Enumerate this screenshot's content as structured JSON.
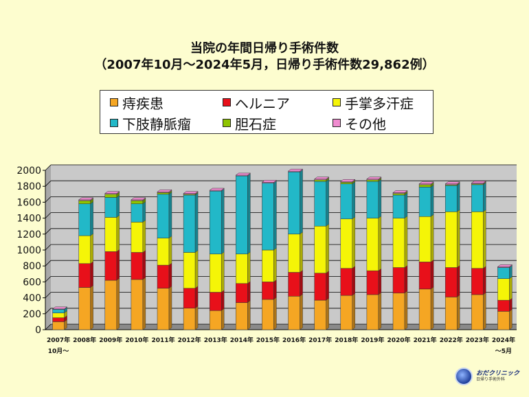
{
  "title_line1": "当院の年間日帰り手術件数",
  "title_line2": "（2007年10月～2024年5月，日帰り手術件数29,862例）",
  "logo": {
    "name": "おだクリニック",
    "subtitle": "日帰り手術外科"
  },
  "colors": {
    "background": "#fdfdcf",
    "plot_wall": "#c9c9c9",
    "floor": "#8a8a8a"
  },
  "chart_data": {
    "type": "bar",
    "stacked": true,
    "ylim": [
      0,
      2000
    ],
    "yticks": [
      "0",
      "200",
      "400",
      "600",
      "800",
      "1000",
      "1200",
      "1400",
      "1600",
      "1800",
      "2000"
    ],
    "grid": true,
    "legend_position": "top",
    "categories": [
      {
        "line1": "2007年",
        "line2": "10月～"
      },
      {
        "line1": "2008年",
        "line2": ""
      },
      {
        "line1": "2009年",
        "line2": ""
      },
      {
        "line1": "2010年",
        "line2": ""
      },
      {
        "line1": "2011年",
        "line2": ""
      },
      {
        "line1": "2012年",
        "line2": ""
      },
      {
        "line1": "2013年",
        "line2": ""
      },
      {
        "line1": "2014年",
        "line2": ""
      },
      {
        "line1": "2015年",
        "line2": ""
      },
      {
        "line1": "2016年",
        "line2": ""
      },
      {
        "line1": "2017年",
        "line2": ""
      },
      {
        "line1": "2018年",
        "line2": ""
      },
      {
        "line1": "2019年",
        "line2": ""
      },
      {
        "line1": "2020年",
        "line2": ""
      },
      {
        "line1": "2021年",
        "line2": ""
      },
      {
        "line1": "2022年",
        "line2": ""
      },
      {
        "line1": "2023年",
        "line2": ""
      },
      {
        "line1": "2024年",
        "line2": "～5月"
      }
    ],
    "series": [
      {
        "name": "痔疾患",
        "color": "#f5a623",
        "values": [
          100,
          530,
          620,
          630,
          520,
          270,
          240,
          340,
          380,
          420,
          370,
          430,
          440,
          460,
          510,
          410,
          440,
          230
        ]
      },
      {
        "name": "ヘルニア",
        "color": "#e8101a",
        "values": [
          50,
          300,
          360,
          340,
          290,
          250,
          230,
          240,
          220,
          300,
          340,
          340,
          300,
          320,
          340,
          370,
          330,
          140
        ]
      },
      {
        "name": "手掌多汗症",
        "color": "#f5f507",
        "values": [
          60,
          350,
          430,
          380,
          340,
          450,
          480,
          370,
          400,
          480,
          590,
          620,
          660,
          620,
          570,
          700,
          710,
          270
        ]
      },
      {
        "name": "下肢静脈瘤",
        "color": "#22b8c8",
        "values": [
          45,
          400,
          250,
          230,
          550,
          720,
          790,
          980,
          840,
          780,
          560,
          440,
          460,
          290,
          370,
          330,
          340,
          140
        ]
      },
      {
        "name": "胆石症",
        "color": "#8fc400",
        "values": [
          0,
          40,
          40,
          40,
          20,
          10,
          0,
          0,
          0,
          0,
          20,
          20,
          20,
          20,
          30,
          10,
          10,
          0
        ]
      },
      {
        "name": "その他",
        "color": "#f08cd0",
        "values": [
          5,
          10,
          10,
          10,
          10,
          10,
          10,
          10,
          10,
          10,
          10,
          10,
          10,
          10,
          10,
          10,
          10,
          10
        ]
      }
    ]
  }
}
